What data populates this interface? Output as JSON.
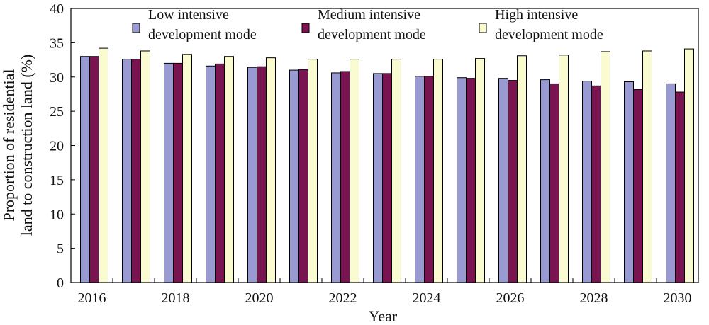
{
  "chart_data": {
    "type": "bar",
    "xlabel": "Year",
    "ylabel_line1": "Proportion of residential",
    "ylabel_line2": "land to construction land (%)",
    "ylim": [
      0,
      40
    ],
    "yticks": [
      0,
      5,
      10,
      15,
      20,
      25,
      30,
      35,
      40
    ],
    "categories": [
      "2016",
      "2017",
      "2018",
      "2019",
      "2020",
      "2021",
      "2022",
      "2023",
      "2024",
      "2025",
      "2026",
      "2027",
      "2028",
      "2029",
      "2030"
    ],
    "x_tick_labels": [
      "2016",
      "2018",
      "2020",
      "2022",
      "2024",
      "2026",
      "2028",
      "2030"
    ],
    "legend_position": "top",
    "grid": false,
    "series": [
      {
        "name_line1": "Low intensive",
        "name_line2": "development mode",
        "color": "#9a9ad2",
        "values": [
          33.0,
          32.6,
          32.0,
          31.6,
          31.4,
          31.0,
          30.6,
          30.5,
          30.1,
          29.9,
          29.8,
          29.6,
          29.4,
          29.3,
          29.0
        ]
      },
      {
        "name_line1": "Medium intensive",
        "name_line2": "development mode",
        "color": "#7a1450",
        "values": [
          33.0,
          32.6,
          32.0,
          31.9,
          31.5,
          31.1,
          30.8,
          30.5,
          30.1,
          29.8,
          29.5,
          29.0,
          28.7,
          28.2,
          27.8
        ]
      },
      {
        "name_line1": "High intensive",
        "name_line2": "development mode",
        "color": "#fbfbd2",
        "values": [
          34.2,
          33.8,
          33.3,
          33.0,
          32.8,
          32.6,
          32.6,
          32.6,
          32.6,
          32.7,
          33.1,
          33.2,
          33.7,
          33.8,
          34.1
        ]
      }
    ]
  }
}
